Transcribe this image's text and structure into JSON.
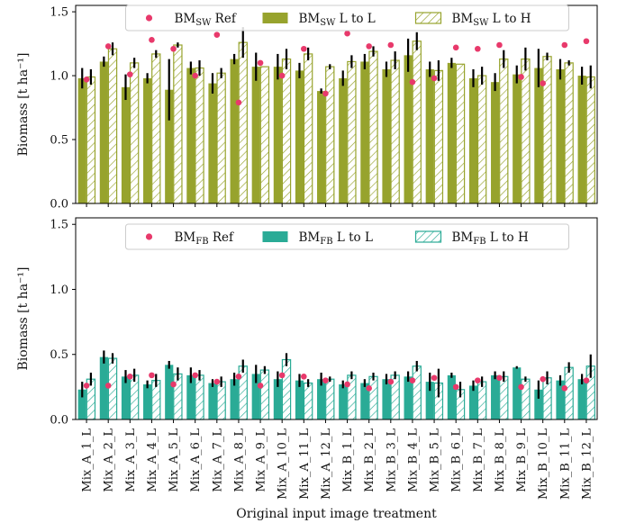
{
  "chart_data": [
    {
      "type": "bar",
      "panel": "top",
      "ylabel": "Biomass [t ha⁻¹]",
      "ylim": [
        0,
        1.55
      ],
      "yticks": [
        0.0,
        0.5,
        1.0,
        1.5
      ],
      "yticklabels": [
        "0.0",
        "0.5",
        "1.0",
        "1.5"
      ],
      "legend": [
        {
          "key": "ref",
          "base": "BM",
          "sub": "SW",
          "suffix": " Ref"
        },
        {
          "key": "ll",
          "base": "BM",
          "sub": "SW",
          "suffix": " L to L"
        },
        {
          "key": "lh",
          "base": "BM",
          "sub": "SW",
          "suffix": " L to H"
        }
      ],
      "colors": {
        "bar": "#97a32d",
        "ref": "#e8396b",
        "err": "#000000"
      },
      "series": [
        {
          "name": "L to L",
          "values": [
            0.98,
            1.11,
            0.91,
            0.98,
            0.89,
            1.06,
            0.94,
            1.13,
            1.07,
            1.07,
            1.04,
            0.88,
            0.98,
            1.11,
            1.05,
            1.16,
            1.05,
            1.1,
            0.98,
            0.95,
            1.01,
            1.06,
            1.05,
            1.0
          ],
          "err": [
            0.08,
            0.04,
            0.1,
            0.04,
            0.24,
            0.05,
            0.08,
            0.04,
            0.11,
            0.1,
            0.06,
            0.02,
            0.06,
            0.06,
            0.06,
            0.13,
            0.06,
            0.04,
            0.07,
            0.07,
            0.07,
            0.15,
            0.08,
            0.07
          ]
        },
        {
          "name": "L to H",
          "values": [
            0.99,
            1.21,
            1.1,
            1.17,
            1.24,
            1.06,
            1.02,
            1.26,
            1.07,
            1.13,
            1.17,
            1.07,
            1.11,
            1.19,
            1.12,
            1.27,
            1.04,
            1.09,
            1.0,
            1.13,
            1.13,
            1.15,
            1.1,
            0.99
          ],
          "err": [
            0.06,
            0.05,
            0.04,
            0.03,
            0.02,
            0.06,
            0.04,
            0.12,
            0.0,
            0.08,
            0.05,
            0.02,
            0.05,
            0.04,
            0.07,
            0.07,
            0.08,
            0.0,
            0.07,
            0.07,
            0.09,
            0.03,
            0.02,
            0.09
          ]
        },
        {
          "name": "Ref",
          "values": [
            0.97,
            1.23,
            1.01,
            1.28,
            1.21,
            1.0,
            1.32,
            0.79,
            1.1,
            1.0,
            1.21,
            0.86,
            1.33,
            1.23,
            1.24,
            0.95,
            0.98,
            1.22,
            1.21,
            1.24,
            0.99,
            0.94,
            1.24,
            1.27
          ]
        }
      ]
    },
    {
      "type": "bar",
      "panel": "bottom",
      "ylabel": "Biomass [t ha⁻¹]",
      "xlabel": "Original input image treatment",
      "ylim": [
        0,
        1.55
      ],
      "yticks": [
        0.0,
        0.5,
        1.0,
        1.5
      ],
      "yticklabels": [
        "0.0",
        "0.5",
        "1.0",
        "1.5"
      ],
      "categories": [
        "Mix_A_1_L",
        "Mix_A_2_L",
        "Mix_A_3_L",
        "Mix_A_4_L",
        "Mix_A_5_L",
        "Mix_A_6_L",
        "Mix_A_7_L",
        "Mix_A_8_L",
        "Mix_A_9_L",
        "Mix_A_10_L",
        "Mix_A_11_L",
        "Mix_A_12_L",
        "Mix_B_1_L",
        "Mix_B_2_L",
        "Mix_B_3_L",
        "Mix_B_4_L",
        "Mix_B_5_L",
        "Mix_B_6_L",
        "Mix_B_7_L",
        "Mix_B_8_L",
        "Mix_B_9_L",
        "Mix_B_10_L",
        "Mix_B_11_L",
        "Mix_B_12_L"
      ],
      "legend": [
        {
          "key": "ref",
          "base": "BM",
          "sub": "FB",
          "suffix": " Ref"
        },
        {
          "key": "ll",
          "base": "BM",
          "sub": "FB",
          "suffix": " L to L"
        },
        {
          "key": "lh",
          "base": "BM",
          "sub": "FB",
          "suffix": " L to H"
        }
      ],
      "colors": {
        "bar": "#2aab96",
        "ref": "#e8396b",
        "err": "#000000"
      },
      "series": [
        {
          "name": "L to L",
          "values": [
            0.23,
            0.48,
            0.33,
            0.27,
            0.42,
            0.34,
            0.28,
            0.31,
            0.35,
            0.31,
            0.3,
            0.31,
            0.27,
            0.28,
            0.31,
            0.33,
            0.29,
            0.34,
            0.26,
            0.34,
            0.4,
            0.23,
            0.3,
            0.31
          ],
          "err": [
            0.06,
            0.05,
            0.05,
            0.03,
            0.03,
            0.06,
            0.03,
            0.05,
            0.07,
            0.06,
            0.05,
            0.05,
            0.03,
            0.03,
            0.04,
            0.04,
            0.07,
            0.02,
            0.04,
            0.03,
            0.01,
            0.07,
            0.04,
            0.04
          ]
        },
        {
          "name": "L to H",
          "values": [
            0.31,
            0.47,
            0.34,
            0.3,
            0.35,
            0.34,
            0.29,
            0.41,
            0.38,
            0.46,
            0.28,
            0.31,
            0.34,
            0.33,
            0.34,
            0.41,
            0.28,
            0.23,
            0.29,
            0.33,
            0.31,
            0.32,
            0.4,
            0.41
          ],
          "err": [
            0.05,
            0.04,
            0.05,
            0.05,
            0.05,
            0.04,
            0.04,
            0.05,
            0.03,
            0.05,
            0.03,
            0.02,
            0.03,
            0.03,
            0.03,
            0.04,
            0.11,
            0.06,
            0.04,
            0.04,
            0.02,
            0.05,
            0.04,
            0.09
          ]
        },
        {
          "name": "Ref",
          "values": [
            0.26,
            0.26,
            0.33,
            0.34,
            0.27,
            0.34,
            0.29,
            0.33,
            0.26,
            0.34,
            0.33,
            0.3,
            0.27,
            0.24,
            0.29,
            0.3,
            0.32,
            0.25,
            0.3,
            0.32,
            0.25,
            0.31,
            0.24,
            0.3
          ]
        }
      ]
    }
  ]
}
